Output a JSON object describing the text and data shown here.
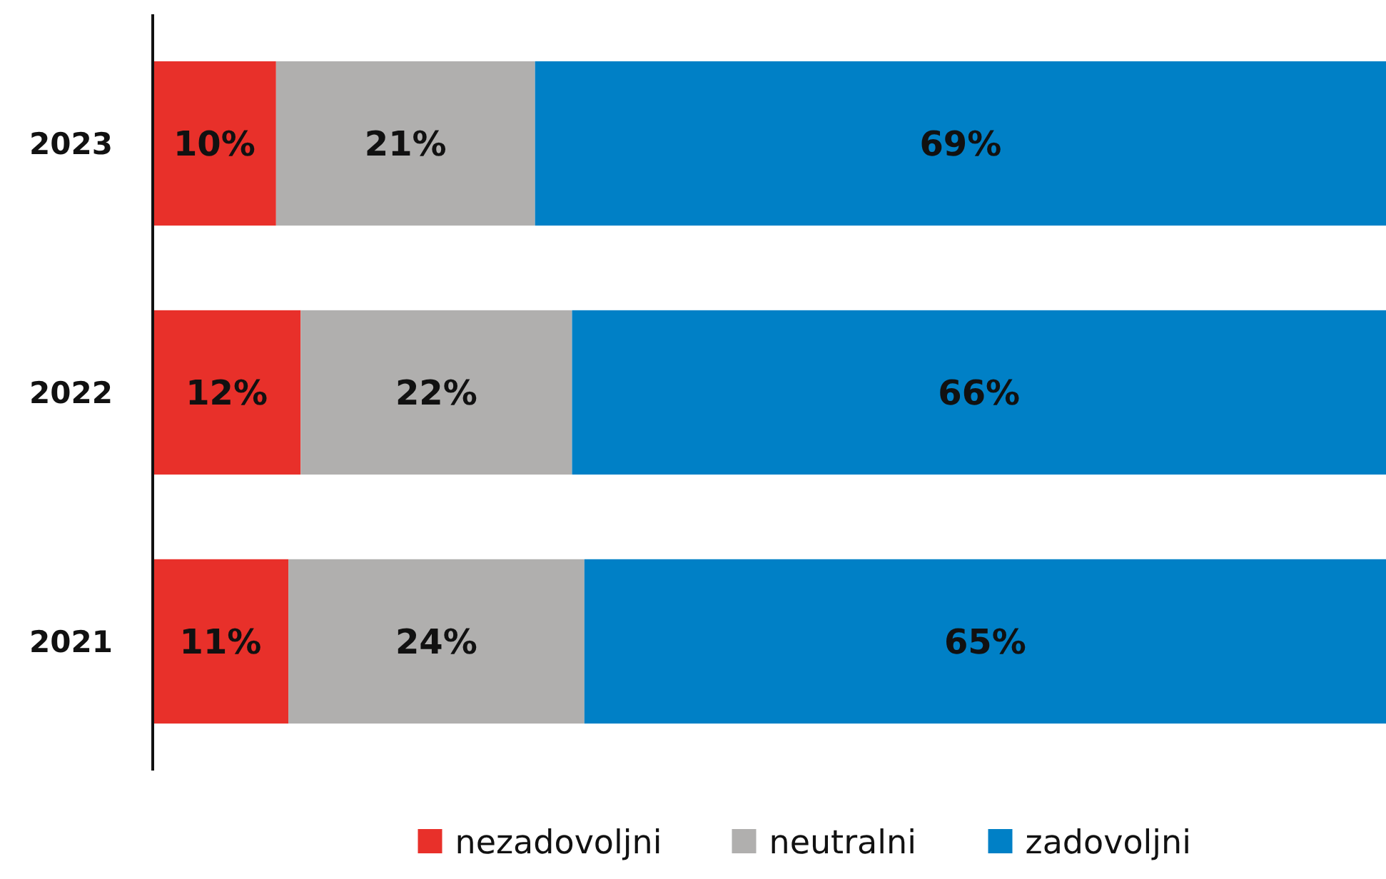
{
  "chart_data": {
    "type": "bar",
    "orientation": "horizontal",
    "stacked": true,
    "categories": [
      "2023",
      "2022",
      "2021"
    ],
    "xlim": [
      0,
      100
    ],
    "legend": "bottom",
    "tick_labels": "y",
    "series": [
      {
        "name": "nezadovoljni",
        "color": "#e8302a",
        "values": [
          10,
          12,
          11
        ],
        "value_labels": [
          "10%",
          "12%",
          "11%"
        ]
      },
      {
        "name": "neutralni",
        "color": "#b0afae",
        "values": [
          21,
          22,
          24
        ],
        "value_labels": [
          "21%",
          "22%",
          "24%"
        ]
      },
      {
        "name": "zadovoljni",
        "color": "#0080c6",
        "values": [
          69,
          66,
          65
        ],
        "value_labels": [
          "69%",
          "66%",
          "65%"
        ]
      }
    ]
  }
}
